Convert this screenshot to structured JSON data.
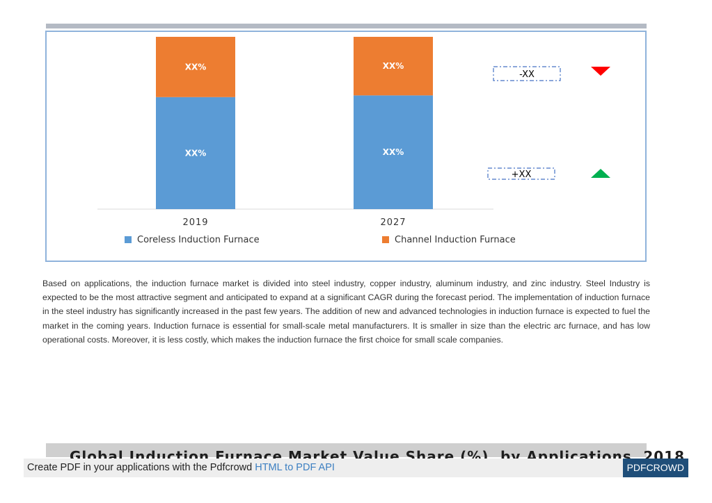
{
  "chart_data": {
    "type": "bar",
    "stacked": true,
    "categories": [
      "2019",
      "2027"
    ],
    "series": [
      {
        "name": "Coreless Induction Furnace",
        "color": "#5b9bd5",
        "values": [
          65,
          66
        ],
        "labels": [
          "XX%",
          "XX%"
        ]
      },
      {
        "name": "Channel Induction Furnace",
        "color": "#ed7d31",
        "values": [
          35,
          34
        ],
        "labels": [
          "XX%",
          "XX%"
        ]
      }
    ],
    "ylim": [
      0,
      100
    ],
    "legend_position": "bottom",
    "grid": false,
    "annotations": [
      {
        "text": "-XX",
        "series": "Channel Induction Furnace",
        "trend": "down",
        "arrow_color": "#ff0000"
      },
      {
        "text": "+XX",
        "series": "Coreless Induction Furnace",
        "trend": "up",
        "arrow_color": "#00b050"
      }
    ]
  },
  "body": {
    "paragraph": "Based on applications, the induction furnace market is divided into steel industry, copper industry, aluminum industry, and zinc industry. Steel Industry is expected to be the most attractive segment and anticipated to expand at a significant CAGR during the forecast period. The implementation of induction furnace in the steel industry has significantly increased in the past few years. The addition of new and advanced technologies in induction furnace is expected to fuel the market in the coming years. Induction furnace is essential for small-scale metal manufacturers. It is smaller in size than the electric arc furnace, and has low operational costs. Moreover, it is less costly, which makes the induction furnace the first choice for small scale companies."
  },
  "next_section": {
    "title": "Global Induction Furnace Market Value Share (%), by Applications, 2018"
  },
  "footer": {
    "text": "Create PDF in your applications with the Pdfcrowd",
    "link": "HTML to PDF API",
    "brand": "PDFCROWD"
  }
}
